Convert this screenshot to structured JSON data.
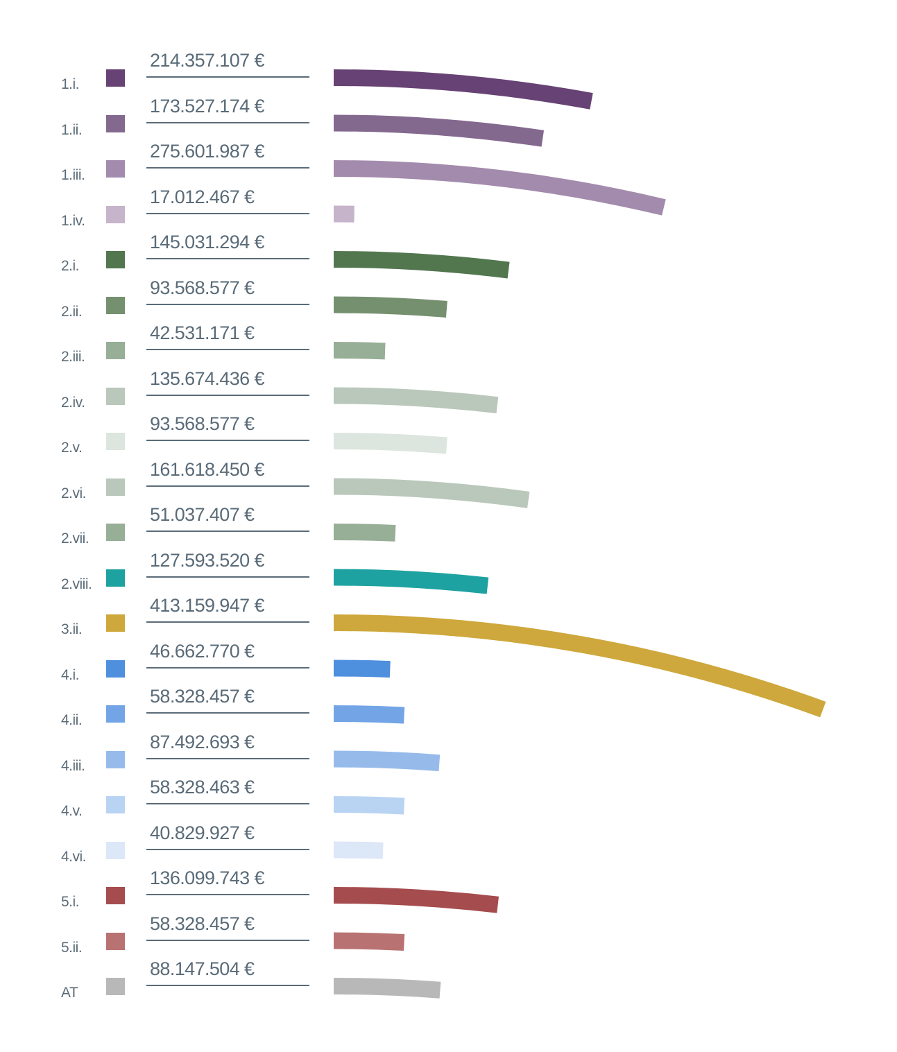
{
  "chart_data": {
    "type": "bar",
    "orientation": "horizontal-arc",
    "categories": [
      "1.i.",
      "1.ii.",
      "1.iii.",
      "1.iv.",
      "2.i.",
      "2.ii.",
      "2.iii.",
      "2.iv.",
      "2.v.",
      "2.vi.",
      "2.vii.",
      "2.viii.",
      "3.ii.",
      "4.i.",
      "4.ii.",
      "4.iii.",
      "4.v.",
      "4.vi.",
      "5.i.",
      "5.ii.",
      "AT"
    ],
    "value_labels": [
      "214.357.107 €",
      "173.527.174 €",
      "275.601.987 €",
      "17.012.467 €",
      "145.031.294 €",
      "93.568.577 €",
      "42.531.171 €",
      "135.674.436 €",
      "93.568.577 €",
      "161.618.450 €",
      "51.037.407 €",
      "127.593.520 €",
      "413.159.947 €",
      "46.662.770 €",
      "58.328.457 €",
      "87.492.693 €",
      "58.328.463 €",
      "40.829.927 €",
      "136.099.743 €",
      "58.328.457 €",
      "88.147.504 €"
    ],
    "values": [
      214357107,
      173527174,
      275601987,
      17012467,
      145031294,
      93568577,
      42531171,
      135674436,
      93568577,
      161618450,
      51037407,
      127593520,
      413159947,
      46662770,
      58328457,
      87492693,
      58328463,
      40829927,
      136099743,
      58328457,
      88147504
    ],
    "colors": [
      "#674274",
      "#84698f",
      "#a38bad",
      "#c6b4cb",
      "#52774f",
      "#75906f",
      "#97ae97",
      "#bac8bb",
      "#dce5de",
      "#bac8bb",
      "#97ae97",
      "#1ea2a1",
      "#cea83c",
      "#4e8fde",
      "#73a5e6",
      "#96bbeb",
      "#b9d3f3",
      "#dce7f7",
      "#a54c4e",
      "#b97272",
      "#b8b8b8"
    ],
    "xlabel": "",
    "ylabel": "",
    "grid": false,
    "legend": "none"
  }
}
